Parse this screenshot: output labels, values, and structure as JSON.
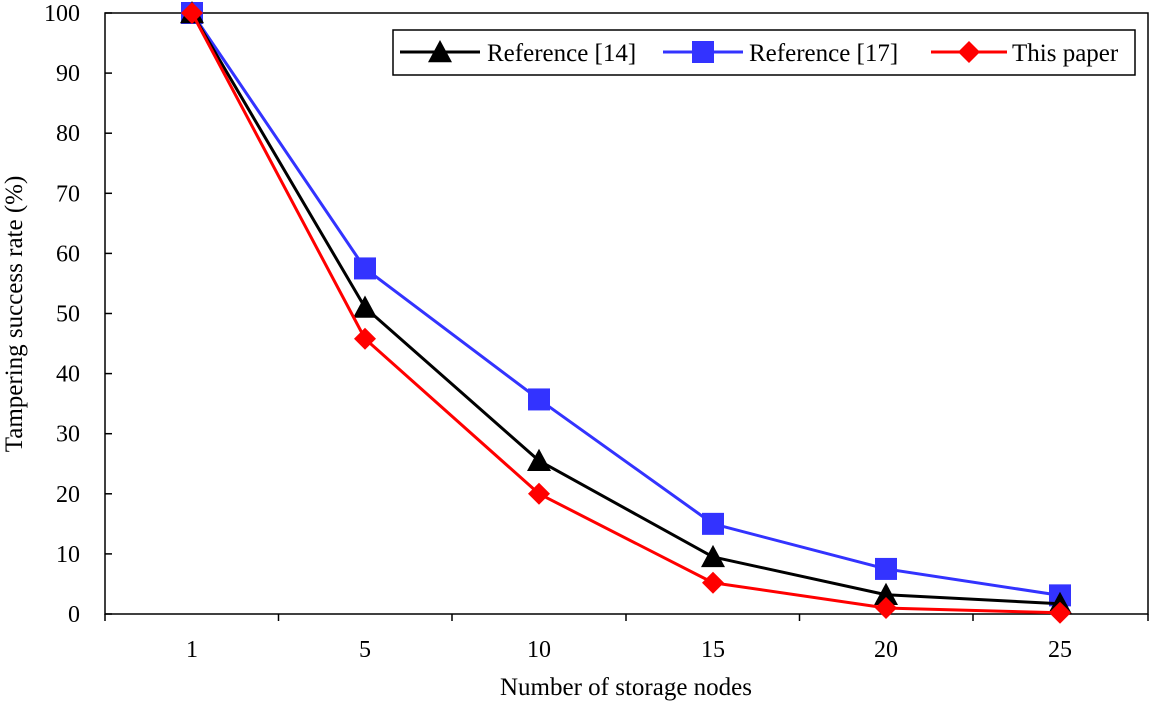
{
  "chart_data": {
    "type": "line",
    "title": "",
    "xlabel": "Number of storage nodes",
    "ylabel": "Tampering success rate (%)",
    "categories": [
      "1",
      "5",
      "10",
      "15",
      "20",
      "25"
    ],
    "x": [
      1,
      5,
      10,
      15,
      20,
      25
    ],
    "ylim": [
      0,
      100
    ],
    "yticks": [
      "0",
      "10",
      "20",
      "30",
      "40",
      "50",
      "60",
      "70",
      "80",
      "90",
      "100"
    ],
    "grid": false,
    "legend_position": "top-right",
    "series": [
      {
        "name": "Reference [14]",
        "color": "#000000",
        "marker": "triangle",
        "values": [
          100,
          51,
          25.5,
          9.5,
          3.2,
          1.7
        ]
      },
      {
        "name": "Reference [17]",
        "color": "#3333ff",
        "marker": "square",
        "values": [
          100,
          57.5,
          35.7,
          15,
          7.5,
          3.1
        ]
      },
      {
        "name": "This paper",
        "color": "#ff0000",
        "marker": "diamond",
        "values": [
          100,
          45.8,
          20,
          5.2,
          1,
          0.2
        ]
      }
    ]
  }
}
